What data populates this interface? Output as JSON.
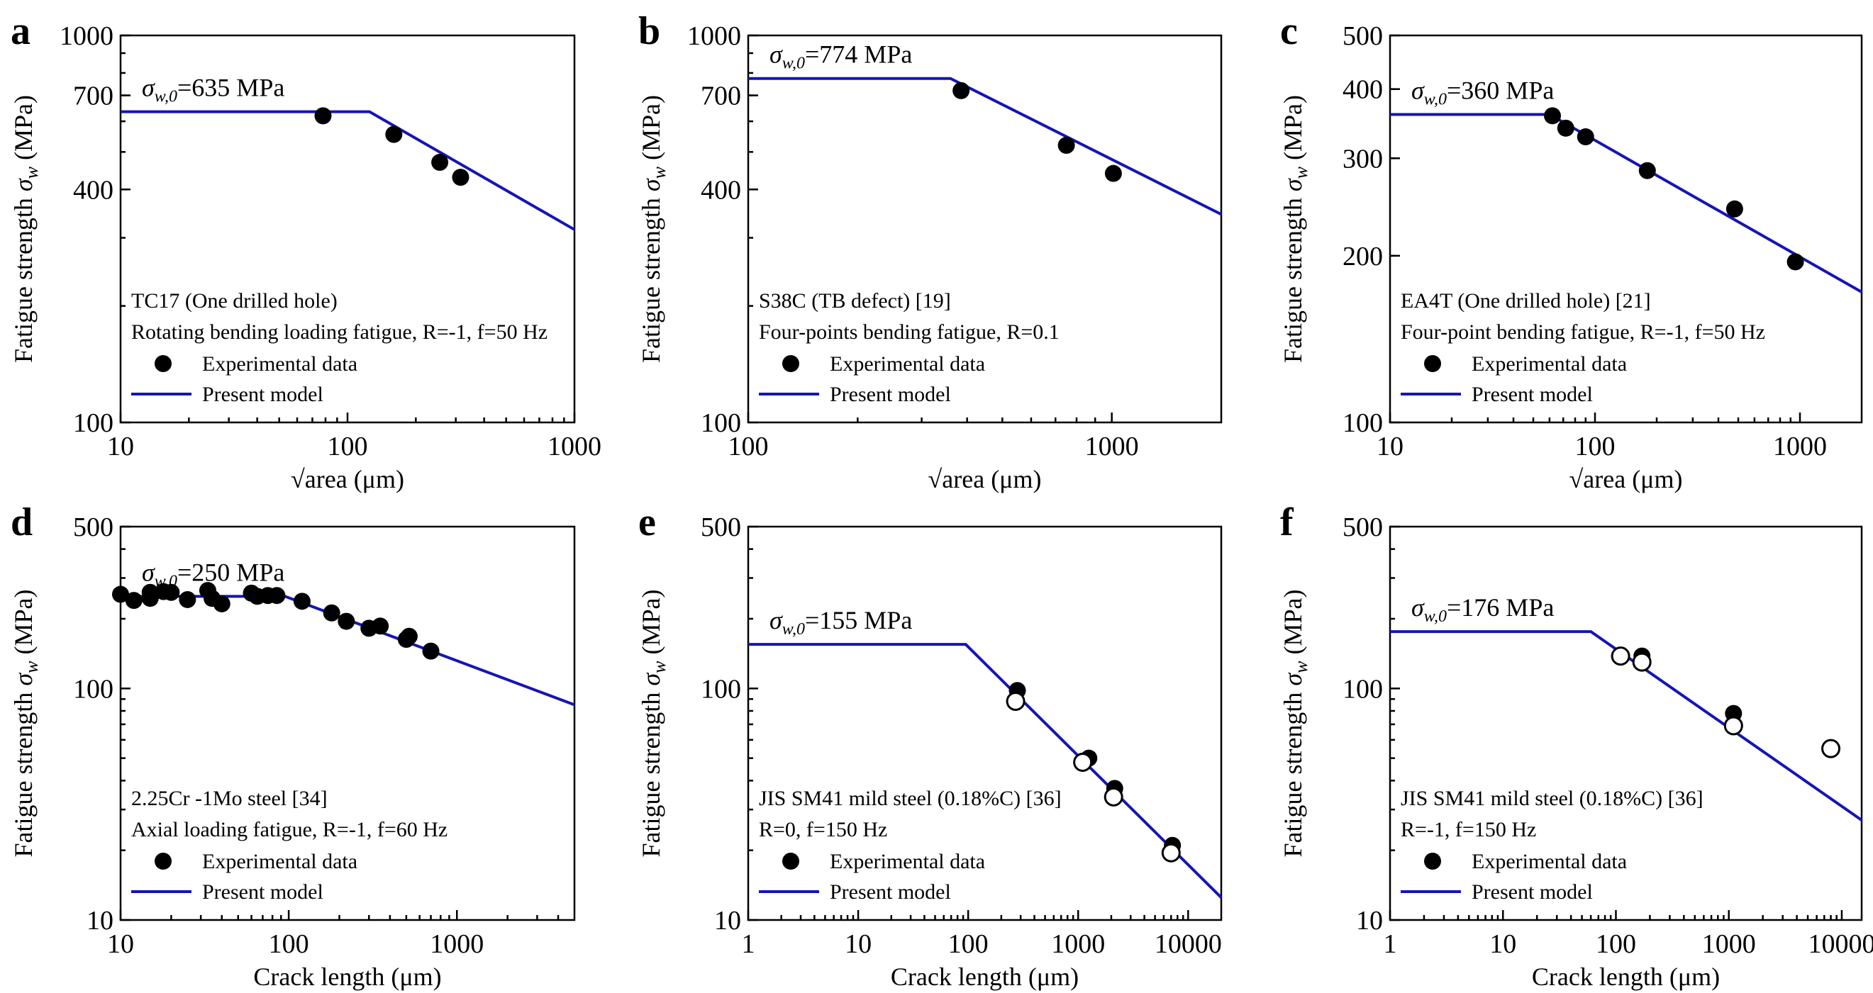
{
  "colors": {
    "model_line": "#1515b4",
    "points": "#000000"
  },
  "chart_data": [
    {
      "type": "scatter",
      "panel": "a",
      "xlabel": "√area (μm)",
      "ylabel": "Fatigue strength σw (MPa)",
      "x_scale": "log",
      "y_scale": "log",
      "xlim": [
        10,
        1000
      ],
      "ylim": [
        100,
        1000
      ],
      "x_ticks": [
        10,
        100,
        1000
      ],
      "y_ticks": [
        100,
        400,
        700,
        1000
      ],
      "sigma_label": "σw,0=635 MPa",
      "annotations": [
        "TC17 (One drilled hole)",
        "Rotating bending loading fatigue,  R=-1, f=50 Hz"
      ],
      "legend": [
        "Experimental data",
        "Present model"
      ],
      "series": [
        {
          "name": "Experimental data",
          "kind": "filled",
          "x": [
            78,
            160,
            255,
            315
          ],
          "y": [
            620,
            555,
            470,
            430
          ]
        },
        {
          "name": "Present model",
          "kind": "line",
          "x": [
            10,
            125,
            1000
          ],
          "y": [
            635,
            635,
            315
          ]
        }
      ]
    },
    {
      "type": "scatter",
      "panel": "b",
      "xlabel": "√area (μm)",
      "ylabel": "Fatigue strength σw (MPa)",
      "x_scale": "log",
      "y_scale": "log",
      "xlim": [
        100,
        2000
      ],
      "ylim": [
        100,
        1000
      ],
      "x_ticks": [
        100,
        1000
      ],
      "y_ticks": [
        100,
        400,
        700,
        1000
      ],
      "sigma_label": "σw,0=774 MPa",
      "annotations": [
        "S38C (TB defect) [19]",
        "Four-points bending fatigue,  R=0.1"
      ],
      "legend": [
        "Experimental data",
        "Present model"
      ],
      "series": [
        {
          "name": "Experimental data",
          "kind": "filled",
          "x": [
            385,
            750,
            1010
          ],
          "y": [
            720,
            520,
            440
          ]
        },
        {
          "name": "Present model",
          "kind": "line",
          "x": [
            100,
            360,
            2000
          ],
          "y": [
            774,
            774,
            345
          ]
        }
      ]
    },
    {
      "type": "scatter",
      "panel": "c",
      "xlabel": "√area (μm)",
      "ylabel": "Fatigue strength σw (MPa)",
      "x_scale": "log",
      "y_scale": "log",
      "xlim": [
        10,
        2000
      ],
      "ylim": [
        100,
        500
      ],
      "x_ticks": [
        10,
        100,
        1000
      ],
      "y_ticks": [
        100,
        200,
        300,
        400,
        500
      ],
      "sigma_label": "σw,0=360 MPa",
      "annotations": [
        "EA4T (One drilled hole) [21]",
        "Four-point bending fatigue,  R=-1, f=50 Hz"
      ],
      "legend": [
        "Experimental data",
        "Present model"
      ],
      "series": [
        {
          "name": "Experimental data",
          "kind": "filled",
          "x": [
            62,
            72,
            90,
            180,
            480,
            950
          ],
          "y": [
            358,
            340,
            328,
            285,
            243,
            195
          ]
        },
        {
          "name": "Present model",
          "kind": "line",
          "x": [
            10,
            60,
            2000
          ],
          "y": [
            360,
            360,
            172
          ]
        }
      ]
    },
    {
      "type": "scatter",
      "panel": "d",
      "xlabel": "Crack length (μm)",
      "ylabel": "Fatigue strength σw (MPa)",
      "x_scale": "log",
      "y_scale": "log",
      "xlim": [
        10,
        5000
      ],
      "ylim": [
        10,
        500
      ],
      "x_ticks": [
        10,
        100,
        1000
      ],
      "y_ticks": [
        10,
        100,
        500
      ],
      "sigma_label": "σw,0=250 MPa",
      "annotations": [
        "2.25Cr -1Mo steel [34]",
        "Axial loading fatigue,  R=-1, f=60 Hz"
      ],
      "legend": [
        "Experimental data",
        "Present model"
      ],
      "series": [
        {
          "name": "Experimental data",
          "kind": "filled",
          "x": [
            10,
            12,
            15,
            15,
            18,
            20,
            25,
            33,
            35,
            40,
            60,
            65,
            75,
            85,
            120,
            180,
            220,
            300,
            350,
            500,
            520,
            700
          ],
          "y": [
            255,
            240,
            260,
            245,
            262,
            260,
            242,
            265,
            245,
            232,
            258,
            250,
            252,
            252,
            238,
            212,
            195,
            182,
            186,
            163,
            168,
            145
          ]
        },
        {
          "name": "Present model",
          "kind": "line",
          "x": [
            10,
            95,
            5000
          ],
          "y": [
            250,
            250,
            85
          ]
        }
      ]
    },
    {
      "type": "scatter",
      "panel": "e",
      "xlabel": "Crack length (μm)",
      "ylabel": "Fatigue strength σw (MPa)",
      "x_scale": "log",
      "y_scale": "log",
      "xlim": [
        1,
        20000
      ],
      "ylim": [
        10,
        500
      ],
      "x_ticks": [
        1,
        10,
        100,
        1000,
        10000
      ],
      "y_ticks": [
        10,
        100,
        500
      ],
      "sigma_label": "σw,0=155 MPa",
      "annotations": [
        "JIS SM41 mild steel (0.18%C) [36]",
        "R=0, f=150 Hz"
      ],
      "legend": [
        "Experimental data",
        "Present model"
      ],
      "series": [
        {
          "name": "Experimental data",
          "kind": "filled",
          "x": [
            280,
            1250,
            2150,
            7200
          ],
          "y": [
            98,
            50,
            37,
            21
          ]
        },
        {
          "name": "Experimental data (open)",
          "kind": "open",
          "x": [
            270,
            1100,
            2100,
            7000
          ],
          "y": [
            88,
            48,
            34,
            19.5
          ]
        },
        {
          "name": "Present model",
          "kind": "line",
          "x": [
            1,
            95,
            20000
          ],
          "y": [
            155,
            155,
            12.5
          ]
        }
      ]
    },
    {
      "type": "scatter",
      "panel": "f",
      "xlabel": "Crack length (μm)",
      "ylabel": "Fatigue strength σw (MPa)",
      "x_scale": "log",
      "y_scale": "log",
      "xlim": [
        1,
        15000
      ],
      "ylim": [
        10,
        500
      ],
      "x_ticks": [
        1,
        10,
        100,
        1000,
        10000
      ],
      "y_ticks": [
        10,
        100,
        500
      ],
      "sigma_label": "σw,0=176 MPa",
      "annotations": [
        "JIS SM41 mild steel (0.18%C) [36]",
        "R=-1, f=150 Hz"
      ],
      "legend": [
        "Experimental data",
        "Present model"
      ],
      "series": [
        {
          "name": "Experimental data",
          "kind": "filled",
          "x": [
            170,
            1100
          ],
          "y": [
            138,
            78
          ]
        },
        {
          "name": "Experimental data (open)",
          "kind": "open",
          "x": [
            110,
            170,
            1100,
            8000
          ],
          "y": [
            138,
            130,
            69,
            55
          ]
        },
        {
          "name": "Present model",
          "kind": "line",
          "x": [
            1,
            60,
            15000
          ],
          "y": [
            176,
            176,
            27
          ]
        }
      ]
    }
  ]
}
